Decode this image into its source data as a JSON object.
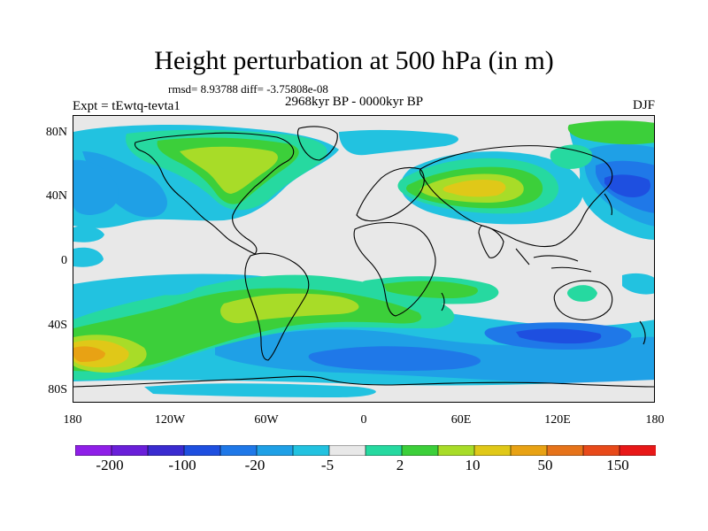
{
  "header": {
    "title": "Height perturbation at 500 hPa (in m)",
    "stats": "rmsd= 8.93788 diff= -3.75808e-08",
    "left_label": "Expt = tEwtq-tevta1",
    "center_label": "2968kyr BP - 0000kyr BP",
    "right_label": "DJF"
  },
  "axes": {
    "y_ticks": [
      "80N",
      "40N",
      "0",
      "40S",
      "80S"
    ],
    "x_ticks": [
      "180",
      "120W",
      "60W",
      "0",
      "60E",
      "120E",
      "180"
    ]
  },
  "colorbar": {
    "colors": [
      "#8f1fe8",
      "#6a1fd9",
      "#3a2bd0",
      "#1e4fe0",
      "#1f78e8",
      "#1fa0e6",
      "#22c2e0",
      "#e8e8e8",
      "#26d9a0",
      "#3ccf3a",
      "#a8dc28",
      "#e0c818",
      "#e8a214",
      "#e6731a",
      "#e84a1a",
      "#e81818"
    ],
    "labels": [
      "-200",
      "-100",
      "-20",
      "-5",
      "2",
      "10",
      "50",
      "150"
    ]
  },
  "map_colors": {
    "neutral": "#e8e8e8",
    "light_blue": "#22c2e0",
    "mid_blue": "#1fa0e6",
    "blue": "#1f78e8",
    "dark_blue": "#1e4fe0",
    "teal_green": "#26d9a0",
    "green": "#3ccf3a",
    "yellow_green": "#a8dc28",
    "yellow": "#e0c818",
    "orange": "#e8a214"
  }
}
